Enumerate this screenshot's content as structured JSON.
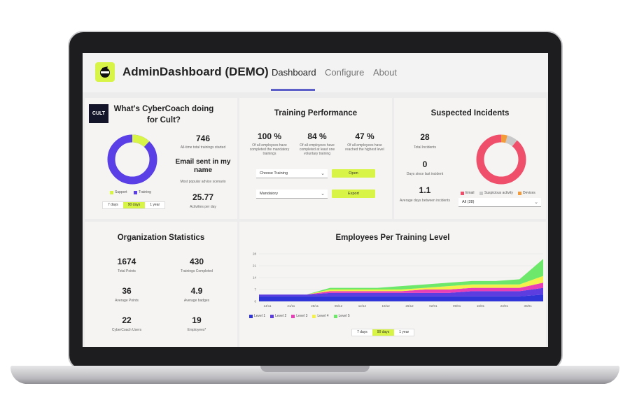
{
  "header": {
    "app_title": "AdminDashboard (DEMO)",
    "tabs": [
      "Dashboard",
      "Configure",
      "About"
    ],
    "active_tab": "Dashboard"
  },
  "cybercoach": {
    "org_logo_text": "CULT",
    "title_line1": "What's CyberCoach doing",
    "title_line2": "for Cult?",
    "donut": {
      "support_pct": 12,
      "training_pct": 88
    },
    "legend": [
      "Support",
      "Training"
    ],
    "stats": [
      {
        "value": "746",
        "label": "All-time total trainings started"
      },
      {
        "value": "Email sent in my name",
        "label": "Most popular advice scenario"
      },
      {
        "value": "25.77",
        "label": "Activities per day"
      }
    ],
    "range": [
      "7 days",
      "90 days",
      "1 year"
    ],
    "range_selected": "90 days"
  },
  "training_performance": {
    "title": "Training Performance",
    "stats": [
      {
        "value": "100 %",
        "label": "Of all employees have completed the mandatory trainings"
      },
      {
        "value": "84 %",
        "label": "Of all employees have completed at least one voluntary training"
      },
      {
        "value": "47 %",
        "label": "Of all employees have reached the highest level"
      }
    ],
    "select1": "Choose Training",
    "select2": "Mandatory",
    "open_button": "Open",
    "export_button": "Export"
  },
  "incidents": {
    "title": "Suspected Incidents",
    "stats": [
      {
        "value": "28",
        "label": "Total Incidents"
      },
      {
        "value": "0",
        "label": "Days since last incident"
      },
      {
        "value": "1.1",
        "label": "Average days between incidents"
      }
    ],
    "donut": {
      "email_pct": 89,
      "suspicious_pct": 7,
      "devices_pct": 4
    },
    "legend": [
      "Email",
      "Suspicious activity",
      "Devices"
    ],
    "filter": "All (28)",
    "colors": {
      "email": "#ef4f6a",
      "suspicious": "#c8c8c8",
      "devices": "#f39a3a"
    }
  },
  "org_stats": {
    "title": "Organization Statistics",
    "stats": [
      {
        "value": "1674",
        "label": "Total Points"
      },
      {
        "value": "430",
        "label": "Trainings Completed"
      },
      {
        "value": "36",
        "label": "Average Points"
      },
      {
        "value": "4.9",
        "label": "Average badges"
      },
      {
        "value": "22",
        "label": "CyberCoach Users"
      },
      {
        "value": "19",
        "label": "Employees*"
      }
    ]
  },
  "chart_data": {
    "type": "area",
    "title": "Employees Per Training Level",
    "x": [
      "14/11",
      "21/11",
      "28/11",
      "05/12",
      "12/12",
      "19/12",
      "26/12",
      "02/01",
      "09/01",
      "16/01",
      "23/01",
      "30/01",
      "06/0"
    ],
    "y_ticks": [
      0,
      7,
      14,
      21,
      28
    ],
    "ylim": [
      0,
      28
    ],
    "series": [
      {
        "name": "Level 1",
        "color": "#2f35d6",
        "values": [
          3,
          3,
          3,
          3,
          3,
          3,
          3,
          3,
          3,
          3,
          3,
          3,
          4
        ]
      },
      {
        "name": "Level 2",
        "color": "#5b3de0",
        "values": [
          1,
          1,
          1,
          2,
          2,
          2,
          2,
          2,
          2,
          3,
          3,
          3,
          4
        ]
      },
      {
        "name": "Level 3",
        "color": "#e83fb7",
        "values": [
          0,
          0,
          0,
          1,
          1,
          1,
          1,
          2,
          2,
          2,
          2,
          2,
          3
        ]
      },
      {
        "name": "Level 4",
        "color": "#f4f24a",
        "values": [
          0,
          0,
          0,
          1,
          1,
          1,
          1,
          1,
          2,
          2,
          2,
          2,
          4
        ]
      },
      {
        "name": "Level 5",
        "color": "#6ee86a",
        "values": [
          0,
          0,
          0,
          1,
          1,
          1,
          2,
          2,
          2,
          2,
          2,
          3,
          10
        ]
      }
    ],
    "range": [
      "7 days",
      "90 days",
      "1 year"
    ],
    "range_selected": "90 days"
  }
}
